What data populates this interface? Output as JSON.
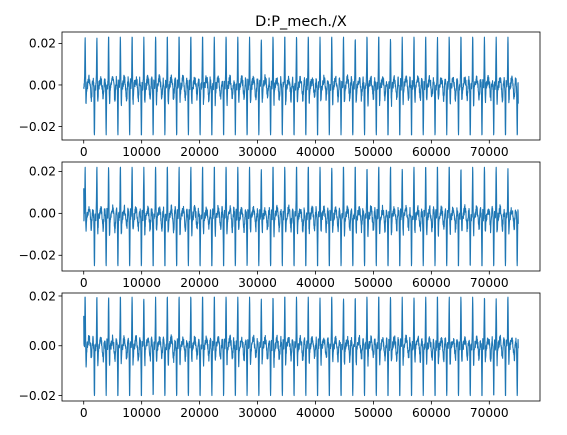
{
  "title": "D:P_mech./X",
  "colors": {
    "series": "#1f77b4",
    "background": "#ffffff",
    "axes": "#000000"
  },
  "chart_data": [
    {
      "type": "line",
      "title": "D:P_mech./X",
      "xlabel": "",
      "ylabel": "",
      "xlim": [
        -3750,
        78750
      ],
      "ylim": [
        -0.0265,
        0.0255
      ],
      "grid": false,
      "x_ticks": [
        0,
        10000,
        20000,
        30000,
        40000,
        50000,
        60000,
        70000
      ],
      "x_tick_labels": [
        "0",
        "10000",
        "20000",
        "30000",
        "40000",
        "50000",
        "60000",
        "70000"
      ],
      "y_ticks": [
        0.02,
        0.0,
        -0.02
      ],
      "y_tick_labels": [
        "0.02",
        "0.00",
        "−0.02"
      ],
      "waveform": {
        "x_start": 0,
        "x_end": 75000,
        "cycles": 37,
        "peak": 0.023,
        "trough": -0.024,
        "start_value": -0.001,
        "end_value": -0.009
      }
    },
    {
      "type": "line",
      "title": "",
      "xlabel": "",
      "ylabel": "",
      "xlim": [
        -3750,
        78750
      ],
      "ylim": [
        -0.0275,
        0.0245
      ],
      "grid": false,
      "x_ticks": [
        0,
        10000,
        20000,
        30000,
        40000,
        50000,
        60000,
        70000
      ],
      "x_tick_labels": [
        "0",
        "10000",
        "20000",
        "30000",
        "40000",
        "50000",
        "60000",
        "70000"
      ],
      "y_ticks": [
        0.02,
        0.0,
        -0.02
      ],
      "y_tick_labels": [
        "0.02",
        "0.00",
        "−0.02"
      ],
      "waveform": {
        "x_start": 0,
        "x_end": 75000,
        "cycles": 37,
        "peak": 0.022,
        "trough": -0.025,
        "start_value": 0.012,
        "end_value": -0.005
      }
    },
    {
      "type": "line",
      "title": "",
      "xlabel": "",
      "ylabel": "",
      "xlim": [
        -3750,
        78750
      ],
      "ylim": [
        -0.0222,
        0.0212
      ],
      "grid": false,
      "x_ticks": [
        0,
        10000,
        20000,
        30000,
        40000,
        50000,
        60000,
        70000
      ],
      "x_tick_labels": [
        "0",
        "10000",
        "20000",
        "30000",
        "40000",
        "50000",
        "60000",
        "70000"
      ],
      "y_ticks": [
        0.02,
        0.0,
        -0.02
      ],
      "y_tick_labels": [
        "0.02",
        "0.00",
        "−0.02"
      ],
      "waveform": {
        "x_start": 0,
        "x_end": 75000,
        "cycles": 37,
        "peak": 0.0195,
        "trough": -0.02,
        "start_value": 0.012,
        "end_value": -0.001
      }
    }
  ]
}
